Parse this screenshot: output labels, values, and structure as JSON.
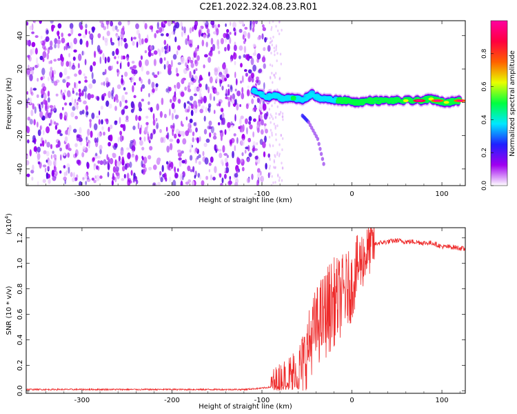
{
  "title": "C2E1.2022.324.08.23.R01",
  "colors": {
    "snr_line": "#ee2a2a",
    "spec_low": "#9b2cf0",
    "background": "#ffffff"
  },
  "chart_data": [
    {
      "type": "heatmap",
      "xlabel": "Height of straight line (km)",
      "ylabel": "Frequency (Hz)",
      "xlim": [
        -362,
        126
      ],
      "ylim": [
        -50,
        49
      ],
      "x_ticks": [
        -300,
        -200,
        -100,
        0,
        100
      ],
      "y_ticks": [
        -40,
        -20,
        0,
        20,
        40
      ],
      "colorbar": {
        "label": "Normalized spectral amplitude",
        "range": [
          0,
          1
        ],
        "ticks": [
          0.0,
          0.2,
          0.4,
          0.6,
          0.8
        ],
        "colors": [
          "#ffffff",
          "#a000f0",
          "#2020ff",
          "#00e8ff",
          "#00ff40",
          "#e8ff00",
          "#ff6000",
          "#ff0040",
          "#ff00a0"
        ]
      },
      "noise_region_x": [
        -362,
        -92
      ],
      "signal_ridge": [
        {
          "x": -110,
          "y": 7,
          "a": 0.35
        },
        {
          "x": -95,
          "y": 3,
          "a": 0.4
        },
        {
          "x": -85,
          "y": 4,
          "a": 0.45
        },
        {
          "x": -75,
          "y": 2,
          "a": 0.45
        },
        {
          "x": -65,
          "y": 3,
          "a": 0.5
        },
        {
          "x": -55,
          "y": 1,
          "a": 0.45
        },
        {
          "x": -45,
          "y": 5,
          "a": 0.45
        },
        {
          "x": -35,
          "y": 2,
          "a": 0.45
        },
        {
          "x": -25,
          "y": 2,
          "a": 0.45
        },
        {
          "x": -15,
          "y": 1,
          "a": 0.5
        },
        {
          "x": -5,
          "y": 1,
          "a": 0.55
        },
        {
          "x": 5,
          "y": 0,
          "a": 0.55
        },
        {
          "x": 20,
          "y": 1,
          "a": 0.55
        },
        {
          "x": 40,
          "y": 1,
          "a": 0.55
        },
        {
          "x": 60,
          "y": 1,
          "a": 0.6
        },
        {
          "x": 75,
          "y": 1,
          "a": 0.85
        },
        {
          "x": 88,
          "y": 2,
          "a": 0.65
        },
        {
          "x": 95,
          "y": 1,
          "a": 0.8
        },
        {
          "x": 105,
          "y": 0,
          "a": 0.65
        },
        {
          "x": 120,
          "y": 1,
          "a": 0.75
        }
      ],
      "side_branch": [
        {
          "x": -55,
          "y": -8
        },
        {
          "x": -48,
          "y": -12
        },
        {
          "x": -38,
          "y": -22
        },
        {
          "x": -30,
          "y": -40
        }
      ]
    },
    {
      "type": "line",
      "xlabel": "Height of straight line (km)",
      "ylabel": "SNR (10 * v/v)",
      "y_multiplier_prefix": "(x10",
      "y_multiplier_exp": "4",
      "y_multiplier_suffix": ")",
      "xlim": [
        -362,
        126
      ],
      "ylim": [
        -0.02,
        1.28
      ],
      "x_ticks": [
        -300,
        -200,
        -100,
        0,
        100
      ],
      "y_ticks": [
        0.0,
        0.2,
        0.4,
        0.6,
        0.8,
        1.0,
        1.2
      ],
      "series": [
        {
          "x": [
            -362,
            -300,
            -200,
            -120,
            -100,
            -90,
            -80,
            -70,
            -60,
            -55,
            -50,
            -45,
            -40,
            -35,
            -30,
            -25,
            -20,
            -15,
            -10,
            -5,
            0,
            5,
            10,
            15,
            20,
            25,
            30,
            40,
            50,
            60,
            70,
            80,
            90,
            100,
            110,
            120,
            126
          ],
          "y": [
            0.01,
            0.01,
            0.01,
            0.01,
            0.02,
            0.03,
            0.05,
            0.08,
            0.13,
            0.2,
            0.3,
            0.42,
            0.5,
            0.55,
            0.6,
            0.65,
            0.7,
            0.72,
            0.76,
            0.8,
            0.82,
            0.95,
            1.02,
            1.06,
            1.12,
            1.15,
            1.16,
            1.17,
            1.18,
            1.17,
            1.17,
            1.16,
            1.16,
            1.13,
            1.13,
            1.12,
            1.11
          ]
        }
      ]
    }
  ]
}
